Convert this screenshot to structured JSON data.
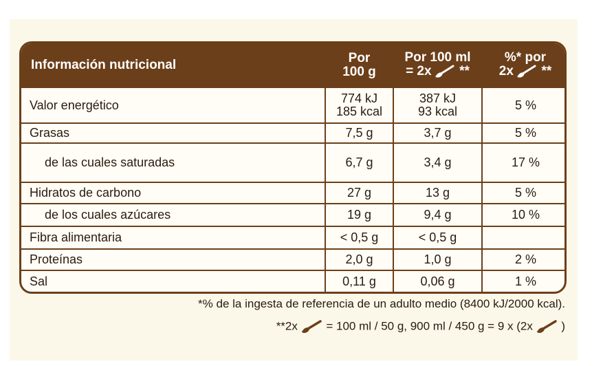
{
  "table": {
    "header": {
      "label": "Información nutricional",
      "col1_line1": "Por",
      "col1_line2": "100 g",
      "col2_line1": "Por 100 ml",
      "col2_line2a": "= 2x",
      "col2_line2b": "**",
      "col3_line1": "%* por",
      "col3_line2a": "2x",
      "col3_line2b": "**"
    },
    "rows": [
      {
        "label": "Valor energético",
        "per100g": "774 kJ",
        "per100g_2": "185 kcal",
        "per100ml": "387 kJ",
        "per100ml_2": "93 kcal",
        "ri": "5 %"
      },
      {
        "label": "Grasas",
        "per100g": "7,5 g",
        "per100ml": "3,7 g",
        "ri": "5 %"
      },
      {
        "label": "de las cuales saturadas",
        "per100g": "6,7 g",
        "per100ml": "3,4 g",
        "ri": "17 %"
      },
      {
        "label": "Hidratos de carbono",
        "per100g": "27 g",
        "per100ml": "13 g",
        "ri": "5 %"
      },
      {
        "label": "de los cuales azúcares",
        "per100g": "19 g",
        "per100ml": "9,4 g",
        "ri": "10 %"
      },
      {
        "label": "Fibra alimentaria",
        "per100g": "< 0,5 g",
        "per100ml": "< 0,5 g",
        "ri": ""
      },
      {
        "label": "Proteínas",
        "per100g": "2,0 g",
        "per100ml": "1,0 g",
        "ri": "2 %"
      },
      {
        "label": "Sal",
        "per100g": "0,11 g",
        "per100ml": "0,06 g",
        "ri": "1 %"
      }
    ]
  },
  "footnotes": {
    "reference": "*% de la ingesta de referencia de un adulto medio (8400 kJ/2000 kcal).",
    "serving_a": "**2x",
    "serving_b": "= 100 ml / 50 g, 900 ml / 450 g = 9 x (2x",
    "serving_c": ")"
  },
  "colors": {
    "frame": "#6b3f1a",
    "panel": "#fbf8e9",
    "text": "#2a1a10"
  },
  "icons": {
    "spoon": "spoon-icon"
  }
}
